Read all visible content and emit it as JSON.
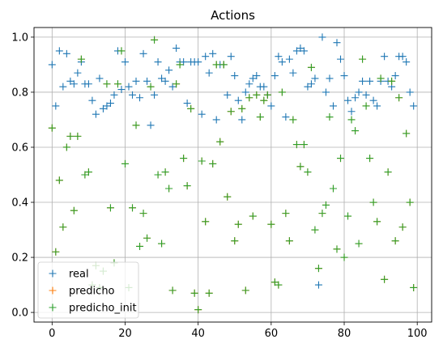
{
  "chart_data": {
    "type": "scatter",
    "title": "Actions",
    "xlabel": "",
    "ylabel": "",
    "xlim": [
      -4.95,
      103.95
    ],
    "ylim": [
      -0.035,
      1.035
    ],
    "x_ticks": [
      0,
      20,
      40,
      60,
      80,
      100
    ],
    "y_ticks": [
      0.0,
      0.2,
      0.4,
      0.6,
      0.8,
      1.0
    ],
    "x_tick_labels": [
      "0",
      "20",
      "40",
      "60",
      "80",
      "100"
    ],
    "y_tick_labels": [
      "0.0",
      "0.2",
      "0.4",
      "0.6",
      "0.8",
      "1.0"
    ],
    "grid": true,
    "legend_position": "lower-left",
    "marker": "+",
    "series": [
      {
        "name": "real",
        "color": "#1f77b4",
        "x": [
          0,
          1,
          2,
          3,
          4,
          5,
          6,
          7,
          8,
          9,
          10,
          11,
          12,
          13,
          14,
          15,
          16,
          17,
          18,
          19,
          20,
          21,
          22,
          23,
          24,
          25,
          26,
          27,
          28,
          29,
          30,
          31,
          32,
          33,
          34,
          35,
          36,
          37,
          38,
          39,
          40,
          41,
          42,
          43,
          44,
          45,
          46,
          47,
          48,
          49,
          50,
          51,
          52,
          53,
          54,
          55,
          56,
          57,
          58,
          59,
          60,
          61,
          62,
          63,
          64,
          65,
          66,
          67,
          68,
          69,
          70,
          71,
          72,
          73,
          74,
          75,
          76,
          77,
          78,
          79,
          80,
          81,
          82,
          83,
          84,
          85,
          86,
          87,
          88,
          89,
          90,
          91,
          92,
          93,
          94,
          95,
          96,
          97,
          98,
          99
        ],
        "y": [
          0.9,
          0.75,
          0.95,
          0.82,
          0.94,
          0.84,
          0.83,
          0.87,
          0.91,
          0.83,
          0.83,
          0.77,
          0.72,
          0.85,
          0.74,
          0.75,
          0.76,
          0.79,
          0.95,
          0.81,
          0.91,
          0.82,
          0.79,
          0.84,
          0.78,
          0.94,
          0.84,
          0.68,
          0.79,
          0.91,
          0.85,
          0.84,
          0.88,
          0.82,
          0.96,
          0.91,
          0.91,
          0.76,
          0.91,
          0.91,
          0.91,
          0.72,
          0.93,
          0.87,
          0.94,
          0.7,
          0.9,
          0.9,
          0.79,
          0.93,
          0.86,
          0.77,
          0.7,
          0.8,
          0.83,
          0.85,
          0.86,
          0.82,
          0.82,
          0.79,
          0.75,
          0.86,
          0.93,
          0.91,
          0.71,
          0.92,
          0.87,
          0.95,
          0.96,
          0.95,
          0.82,
          0.83,
          0.85,
          0.1,
          1.0,
          0.8,
          0.85,
          0.75,
          0.98,
          0.92,
          0.86,
          0.77,
          0.73,
          0.78,
          0.8,
          0.84,
          0.79,
          0.84,
          0.77,
          0.75,
          0.84,
          0.93,
          0.84,
          0.82,
          0.86,
          0.93,
          0.93,
          0.91,
          0.8,
          0.75
        ]
      },
      {
        "name": "predicho",
        "color": "#ff7f0e",
        "x": [
          0,
          1,
          2,
          3,
          4,
          5,
          6,
          7,
          8,
          9,
          10,
          11,
          12,
          13,
          14,
          15,
          16,
          17,
          18,
          19,
          20,
          21,
          22,
          23,
          24,
          25,
          26,
          27,
          28,
          29,
          30,
          31,
          32,
          33,
          34,
          35,
          36,
          37,
          38,
          39,
          40,
          41,
          42,
          43,
          44,
          45,
          46,
          47,
          48,
          49,
          50,
          51,
          52,
          53,
          54,
          55,
          56,
          57,
          58,
          59,
          60,
          61,
          62,
          63,
          64,
          65,
          66,
          67,
          68,
          69,
          70,
          71,
          72,
          73,
          74,
          75,
          76,
          77,
          78,
          79,
          80,
          81,
          82,
          83,
          84,
          85,
          86,
          87,
          88,
          89,
          90,
          91,
          92,
          93,
          94,
          95,
          96,
          97,
          98,
          99
        ],
        "y": [
          0.67,
          0.22,
          0.48,
          0.31,
          0.6,
          0.64,
          0.37,
          0.64,
          0.92,
          0.5,
          0.51,
          0.1,
          0.17,
          0.09,
          0.15,
          0.83,
          0.38,
          0.18,
          0.83,
          0.95,
          0.54,
          0.09,
          0.38,
          0.68,
          0.24,
          0.36,
          0.27,
          0.82,
          0.99,
          0.5,
          0.25,
          0.51,
          0.45,
          0.08,
          0.83,
          0.9,
          0.56,
          0.46,
          0.74,
          0.07,
          0.01,
          0.55,
          0.33,
          0.07,
          0.54,
          0.9,
          0.62,
          0.9,
          0.42,
          0.73,
          0.26,
          0.32,
          0.74,
          0.08,
          0.78,
          0.35,
          0.79,
          0.71,
          0.77,
          0.79,
          0.32,
          0.11,
          0.1,
          0.8,
          0.36,
          0.26,
          0.7,
          0.61,
          0.53,
          0.61,
          0.51,
          0.89,
          0.3,
          0.16,
          0.36,
          0.39,
          0.71,
          0.45,
          0.23,
          0.56,
          0.2,
          0.35,
          0.7,
          0.66,
          0.25,
          0.92,
          0.75,
          0.56,
          0.4,
          0.33,
          0.85,
          0.12,
          0.51,
          0.84,
          0.26,
          0.78,
          0.31,
          0.65,
          0.4,
          0.09
        ]
      },
      {
        "name": "predicho_init",
        "color": "#2ca02c",
        "x": [
          0,
          1,
          2,
          3,
          4,
          5,
          6,
          7,
          8,
          9,
          10,
          11,
          12,
          13,
          14,
          15,
          16,
          17,
          18,
          19,
          20,
          21,
          22,
          23,
          24,
          25,
          26,
          27,
          28,
          29,
          30,
          31,
          32,
          33,
          34,
          35,
          36,
          37,
          38,
          39,
          40,
          41,
          42,
          43,
          44,
          45,
          46,
          47,
          48,
          49,
          50,
          51,
          52,
          53,
          54,
          55,
          56,
          57,
          58,
          59,
          60,
          61,
          62,
          63,
          64,
          65,
          66,
          67,
          68,
          69,
          70,
          71,
          72,
          73,
          74,
          75,
          76,
          77,
          78,
          79,
          80,
          81,
          82,
          83,
          84,
          85,
          86,
          87,
          88,
          89,
          90,
          91,
          92,
          93,
          94,
          95,
          96,
          97,
          98,
          99
        ],
        "y": [
          0.67,
          0.22,
          0.48,
          0.31,
          0.6,
          0.64,
          0.37,
          0.64,
          0.92,
          0.5,
          0.51,
          0.1,
          0.17,
          0.09,
          0.15,
          0.83,
          0.38,
          0.18,
          0.83,
          0.95,
          0.54,
          0.09,
          0.38,
          0.68,
          0.24,
          0.36,
          0.27,
          0.82,
          0.99,
          0.5,
          0.25,
          0.51,
          0.45,
          0.08,
          0.83,
          0.9,
          0.56,
          0.46,
          0.74,
          0.07,
          0.01,
          0.55,
          0.33,
          0.07,
          0.54,
          0.9,
          0.62,
          0.9,
          0.42,
          0.73,
          0.26,
          0.32,
          0.74,
          0.08,
          0.78,
          0.35,
          0.79,
          0.71,
          0.77,
          0.79,
          0.32,
          0.11,
          0.1,
          0.8,
          0.36,
          0.26,
          0.7,
          0.61,
          0.53,
          0.61,
          0.51,
          0.89,
          0.3,
          0.16,
          0.36,
          0.39,
          0.71,
          0.45,
          0.23,
          0.56,
          0.2,
          0.35,
          0.7,
          0.66,
          0.25,
          0.92,
          0.75,
          0.56,
          0.4,
          0.33,
          0.85,
          0.12,
          0.51,
          0.84,
          0.26,
          0.78,
          0.31,
          0.65,
          0.4,
          0.09
        ]
      }
    ]
  }
}
